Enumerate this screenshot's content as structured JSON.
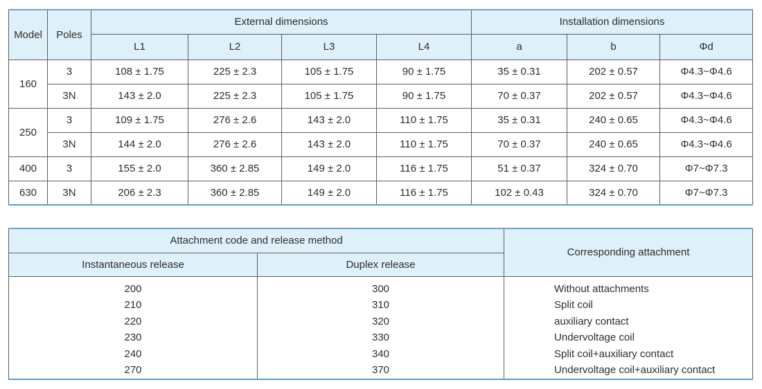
{
  "colors": {
    "header_fill": "#def0f9",
    "outer_border_blue": "#5d9cc4",
    "inner_border_gray": "#5b5d5f",
    "text": "#2d2d2d",
    "row_fill": "#ffffff"
  },
  "dimension_table": {
    "header": {
      "model": "Model",
      "poles": "Poles",
      "external": "External dimensions",
      "installation": "Installation dimensions",
      "external_subs": [
        "L1",
        "L2",
        "L3",
        "L4"
      ],
      "installation_subs": [
        "a",
        "b",
        "Φd"
      ]
    },
    "rows": [
      {
        "model": "160",
        "model_rowspan": 2,
        "poles": "3",
        "l1": "108 ± 1.75",
        "l2": "225 ± 2.3",
        "l3": "105 ± 1.75",
        "l4": "90 ± 1.75",
        "a": "35 ± 0.31",
        "b": "202 ± 0.57",
        "phi_d": "Φ4.3~Φ4.6"
      },
      {
        "poles": "3N",
        "l1": "143 ± 2.0",
        "l2": "225 ± 2.3",
        "l3": "105 ± 1.75",
        "l4": "90 ± 1.75",
        "a": "70 ± 0.37",
        "b": "202 ± 0.57",
        "phi_d": "Φ4.3~Φ4.6"
      },
      {
        "model": "250",
        "model_rowspan": 2,
        "poles": "3",
        "l1": "109 ± 1.75",
        "l2": "276 ± 2.6",
        "l3": "143 ± 2.0",
        "l4": "110 ± 1.75",
        "a": "35 ± 0.31",
        "b": "240 ± 0.65",
        "phi_d": "Φ4.3~Φ4.6"
      },
      {
        "poles": "3N",
        "l1": "144 ± 2.0",
        "l2": "276 ± 2.6",
        "l3": "143 ± 2.0",
        "l4": "110 ± 1.75",
        "a": "70 ± 0.37",
        "b": "240 ± 0.65",
        "phi_d": "Φ4.3~Φ4.6"
      },
      {
        "model": "400",
        "model_rowspan": 1,
        "poles": "3",
        "l1": "155 ± 2.0",
        "l2": "360 ± 2.85",
        "l3": "149 ± 2.0",
        "l4": "116 ± 1.75",
        "a": "51 ± 0.37",
        "b": "324 ± 0.70",
        "phi_d": "Φ7~Φ7.3"
      },
      {
        "model": "630",
        "model_rowspan": 1,
        "poles": "3N",
        "l1": "206 ± 2.3",
        "l2": "360 ± 2.85",
        "l3": "149 ± 2.0",
        "l4": "116 ± 1.75",
        "a": "102 ± 0.43",
        "b": "324 ± 0.70",
        "phi_d": "Φ7~Φ7.3"
      }
    ]
  },
  "attachment_table": {
    "header": {
      "code_method": "Attachment code and release method",
      "instantaneous": "Instantaneous release",
      "duplex": "Duplex release",
      "corresponding": "Corresponding attachment"
    },
    "rows": [
      {
        "instantaneous": "200",
        "duplex": "300",
        "attachment": "Without attachments"
      },
      {
        "instantaneous": "210",
        "duplex": "310",
        "attachment": "Split coil"
      },
      {
        "instantaneous": "220",
        "duplex": "320",
        "attachment": "auxiliary contact"
      },
      {
        "instantaneous": "230",
        "duplex": "330",
        "attachment": "Undervoltage coil"
      },
      {
        "instantaneous": "240",
        "duplex": "340",
        "attachment": "Split coil+auxiliary contact"
      },
      {
        "instantaneous": "270",
        "duplex": "370",
        "attachment": "Undervoltage coil+auxiliary contact"
      }
    ]
  }
}
